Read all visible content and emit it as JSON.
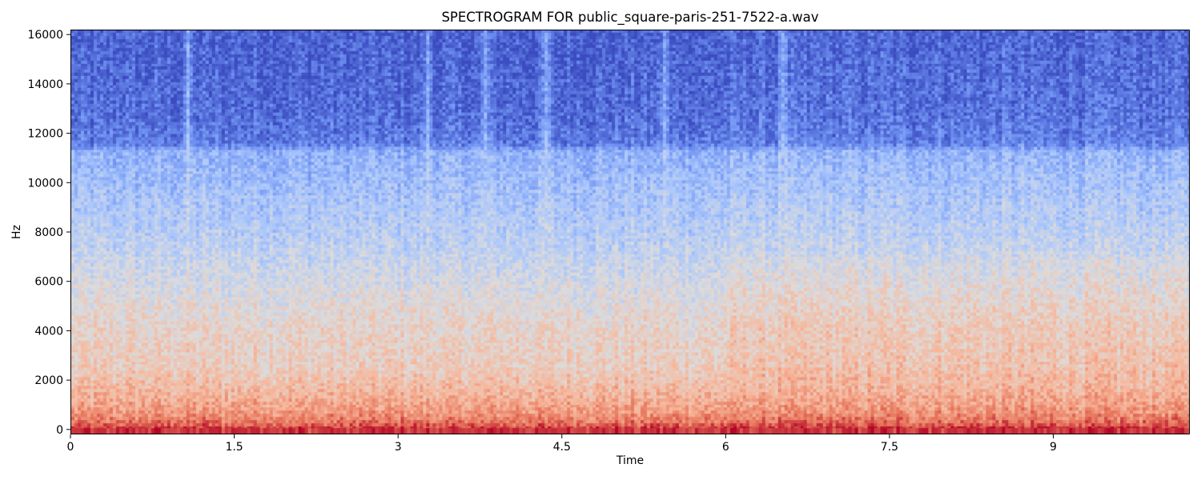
{
  "chart_data": {
    "type": "heatmap",
    "title": "SPECTROGRAM FOR public_square-paris-251-7522-a.wav",
    "xlabel": "Time",
    "ylabel": "Hz",
    "xlim": [
      0,
      10.25
    ],
    "ylim": [
      -200,
      16200
    ],
    "x_ticks": [
      0,
      1.5,
      3,
      4.5,
      6,
      7.5,
      9
    ],
    "x_tick_labels": [
      "0",
      "1.5",
      "3",
      "4.5",
      "6",
      "7.5",
      "9"
    ],
    "y_ticks": [
      0,
      2000,
      4000,
      6000,
      8000,
      10000,
      12000,
      14000,
      16000
    ],
    "y_tick_labels": [
      "0",
      "2000",
      "4000",
      "6000",
      "8000",
      "10000",
      "12000",
      "14000",
      "16000"
    ],
    "colormap": "coolwarm",
    "colormap_stops": [
      "#3b4cc0",
      "#6f92f3",
      "#aac7fd",
      "#dddcdc",
      "#f7b89c",
      "#e7745b",
      "#b40426"
    ],
    "intensity_profile": {
      "description": "approximate normalized intensity (0 = low, 1 = high) by frequency",
      "frequency_hz": [
        0,
        300,
        700,
        1500,
        2500,
        4000,
        5500,
        7000,
        8500,
        10000,
        11300,
        11600,
        13000,
        16000
      ],
      "intensity": [
        0.93,
        0.82,
        0.74,
        0.66,
        0.58,
        0.55,
        0.49,
        0.42,
        0.36,
        0.31,
        0.26,
        0.12,
        0.08,
        0.05
      ]
    },
    "broadband_transients_s": [
      1.07,
      3.27,
      3.77,
      4.35,
      5.43,
      6.52
    ]
  }
}
